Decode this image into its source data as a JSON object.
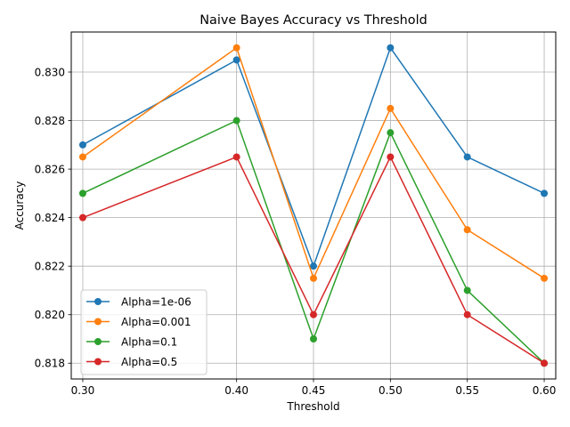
{
  "chart_data": {
    "type": "line",
    "title": "Naive Bayes Accuracy vs Threshold",
    "xlabel": "Threshold",
    "ylabel": "Accuracy",
    "x": [
      0.3,
      0.4,
      0.45,
      0.5,
      0.55,
      0.6
    ],
    "x_tick_labels": [
      "0.30",
      "0.40",
      "0.45",
      "0.50",
      "0.55",
      "0.60"
    ],
    "xlim": [
      0.2925,
      0.6075
    ],
    "ylim": [
      0.81735,
      0.83165
    ],
    "y_ticks": [
      0.818,
      0.82,
      0.822,
      0.824,
      0.826,
      0.828,
      0.83
    ],
    "y_tick_labels": [
      "0.818",
      "0.820",
      "0.822",
      "0.824",
      "0.826",
      "0.828",
      "0.830"
    ],
    "grid": true,
    "legend_position": "lower-left",
    "series": [
      {
        "name": "Alpha=1e-06",
        "color": "#1f77b4",
        "values": [
          0.827,
          0.8305,
          0.822,
          0.831,
          0.8265,
          0.825
        ]
      },
      {
        "name": "Alpha=0.001",
        "color": "#ff7f0e",
        "values": [
          0.8265,
          0.831,
          0.8215,
          0.8285,
          0.8235,
          0.8215
        ]
      },
      {
        "name": "Alpha=0.1",
        "color": "#2ca02c",
        "values": [
          0.825,
          0.828,
          0.819,
          0.8275,
          0.821,
          0.818
        ]
      },
      {
        "name": "Alpha=0.5",
        "color": "#d62728",
        "values": [
          0.824,
          0.8265,
          0.82,
          0.8265,
          0.82,
          0.818
        ]
      }
    ]
  }
}
